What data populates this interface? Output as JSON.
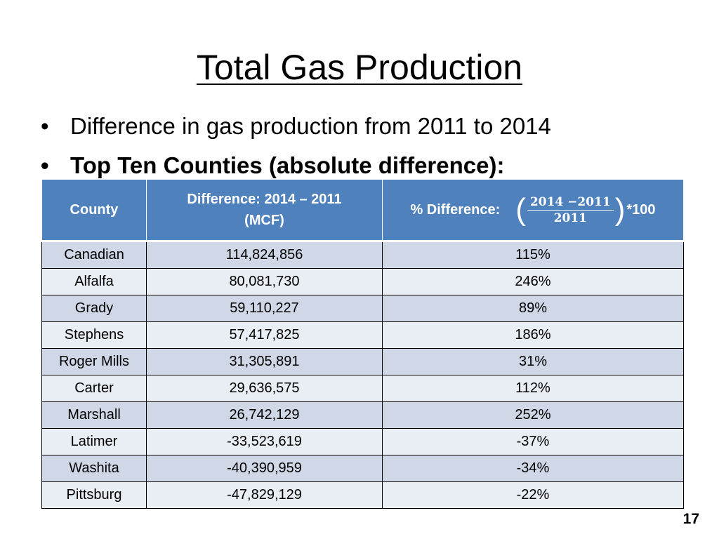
{
  "title": "Total Gas Production",
  "bullets": [
    "Difference in gas production from 2011 to 2014",
    "Top Ten Counties (absolute difference):"
  ],
  "table": {
    "headers": {
      "county": "County",
      "difference_line1": "Difference: 2014 – 2011",
      "difference_line2": "(MCF)",
      "pct_label": "% Difference:",
      "pct_numerator": "2014 −2011",
      "pct_denominator": "2011",
      "pct_multiplier": "*100"
    },
    "rows": [
      {
        "county": "Canadian",
        "difference": "114,824,856",
        "pct": "115%"
      },
      {
        "county": "Alfalfa",
        "difference": "80,081,730",
        "pct": "246%"
      },
      {
        "county": "Grady",
        "difference": "59,110,227",
        "pct": "89%"
      },
      {
        "county": "Stephens",
        "difference": "57,417,825",
        "pct": "186%"
      },
      {
        "county": "Roger Mills",
        "difference": "31,305,891",
        "pct": "31%"
      },
      {
        "county": "Carter",
        "difference": "29,636,575",
        "pct": "112%"
      },
      {
        "county": "Marshall",
        "difference": "26,742,129",
        "pct": "252%"
      },
      {
        "county": "Latimer",
        "difference": "-33,523,619",
        "pct": "-37%"
      },
      {
        "county": "Washita",
        "difference": "-40,390,959",
        "pct": "-34%"
      },
      {
        "county": "Pittsburg",
        "difference": "-47,829,129",
        "pct": "-22%"
      }
    ]
  },
  "page_number": "17",
  "colors": {
    "header_bg": "#4f81bd",
    "row_odd": "#d0d8e8",
    "row_even": "#e9edf4"
  }
}
